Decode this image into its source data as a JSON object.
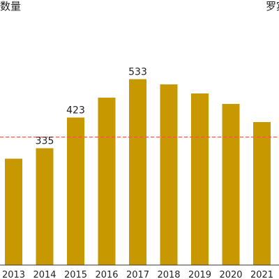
{
  "chart_data": {
    "type": "bar",
    "title": "",
    "top_left_label": "数量",
    "top_right_label": "罗宾",
    "xlabel": "",
    "ylabel": "",
    "categories": [
      "2013",
      "2014",
      "2015",
      "2016",
      "2017",
      "2018",
      "2019",
      "2020",
      "2021"
    ],
    "values": [
      305,
      335,
      423,
      480,
      533,
      518,
      492,
      462,
      410
    ],
    "data_labels": {
      "2014": "335",
      "2015": "423",
      "2017": "533"
    },
    "ylim": [
      0,
      610
    ],
    "reference_line": {
      "value": 367,
      "style": "dashed"
    },
    "grid": false,
    "legend": "none",
    "colors": {
      "bar": "#c89800",
      "reference_line": "#ff4d4d",
      "text": "#222222",
      "axis": "#333333"
    }
  }
}
